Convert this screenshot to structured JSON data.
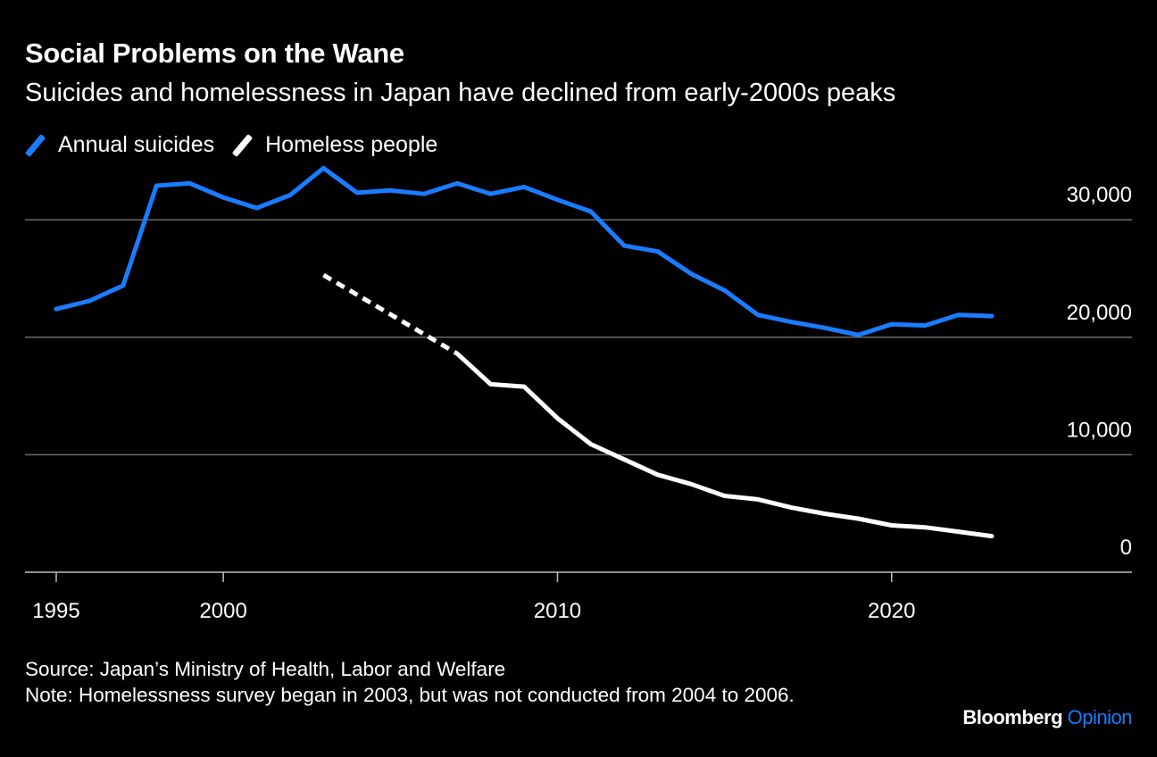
{
  "title": "Social Problems on the Wane",
  "subtitle": "Suicides and homelessness in Japan have declined from early-2000s peaks",
  "chart_data": {
    "type": "line",
    "title": "Social Problems on the Wane",
    "subtitle": "Suicides and homelessness in Japan have declined from early-2000s peaks",
    "xlabel": "",
    "ylabel": "",
    "xlim": [
      1994.9,
      2027.2
    ],
    "ylim": [
      0,
      34000
    ],
    "x_ticks": [
      1995,
      2000,
      2010,
      2020
    ],
    "x_tick_labels": [
      "1995",
      "2000",
      "2010",
      "2020"
    ],
    "y_ticks": [
      0,
      10000,
      20000,
      30000
    ],
    "y_tick_labels": [
      "0",
      "10,000",
      "20,000",
      "30,000"
    ],
    "grid": true,
    "legend_placement": "top-left",
    "series": [
      {
        "name": "Annual suicides",
        "color": "#1a7cff",
        "style": "solid",
        "x": [
          1995,
          1996,
          1997,
          1998,
          1999,
          2000,
          2001,
          2002,
          2003,
          2004,
          2005,
          2006,
          2007,
          2008,
          2009,
          2010,
          2011,
          2012,
          2013,
          2014,
          2015,
          2016,
          2017,
          2018,
          2019,
          2020,
          2021,
          2022,
          2023
        ],
        "y": [
          22400,
          23100,
          24400,
          32900,
          33100,
          31900,
          31000,
          32100,
          34400,
          32300,
          32500,
          32200,
          33100,
          32200,
          32800,
          31700,
          30700,
          27800,
          27300,
          25400,
          24000,
          21900,
          21300,
          20800,
          20200,
          21100,
          21000,
          21900,
          21800
        ]
      },
      {
        "name": "Homeless people",
        "color": "#ffffff",
        "segments": [
          {
            "style": "dashed",
            "x": [
              2003,
              2007
            ],
            "y": [
              25300,
              18600
            ]
          },
          {
            "style": "solid",
            "x": [
              2007,
              2008,
              2009,
              2010,
              2011,
              2012,
              2013,
              2014,
              2015,
              2016,
              2017,
              2018,
              2019,
              2020,
              2021,
              2022,
              2023
            ],
            "y": [
              18600,
              16000,
              15800,
              13100,
              10900,
              9600,
              8300,
              7500,
              6500,
              6200,
              5500,
              4980,
              4560,
              3990,
              3820,
              3450,
              3070
            ]
          }
        ]
      }
    ]
  },
  "footer": {
    "source": "Source: Japan’s Ministry of Health, Labor and Welfare",
    "note": "Note: Homelessness survey began in 2003, but was not conducted from 2004 to 2006."
  },
  "brand": {
    "name": "Bloomberg",
    "section": "Opinion"
  }
}
